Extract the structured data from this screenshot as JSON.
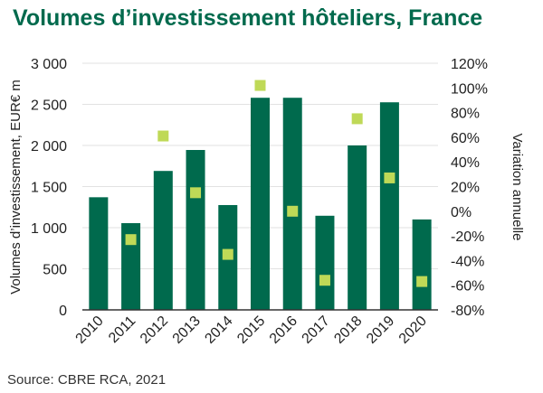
{
  "title": "Volumes d’investissement hôteliers, France",
  "source": "Source: CBRE RCA, 2021",
  "colors": {
    "bars": "#006A4D",
    "markers": "#BFD957",
    "title": "#006A4D"
  },
  "chart_data": {
    "type": "bar",
    "categories": [
      "2010",
      "2011",
      "2012",
      "2013",
      "2014",
      "2015",
      "2016",
      "2017",
      "2018",
      "2019",
      "2020"
    ],
    "series": [
      {
        "type": "bar",
        "axis": "left",
        "values": [
          1370,
          1055,
          1690,
          1945,
          1275,
          2580,
          2580,
          1145,
          2000,
          2525,
          1100
        ]
      },
      {
        "type": "scatter",
        "axis": "right",
        "marker": "square",
        "values": [
          null,
          -23,
          61,
          15,
          -35,
          102,
          0,
          -56,
          75,
          27,
          -57
        ]
      }
    ],
    "ylabel": "Volumes d’investissement, EUR€ m",
    "y2label": "Variation annuelle",
    "ylim": [
      0,
      3000
    ],
    "y2lim": [
      -80,
      120
    ],
    "yticks": [
      "0",
      "500",
      "1 000",
      "1 500",
      "2 000",
      "2 500",
      "3 000"
    ],
    "y2ticks": [
      "-80%",
      "-60%",
      "-40%",
      "-20%",
      "0%",
      "20%",
      "40%",
      "60%",
      "80%",
      "100%",
      "120%"
    ],
    "grid": true,
    "legend": "none"
  }
}
